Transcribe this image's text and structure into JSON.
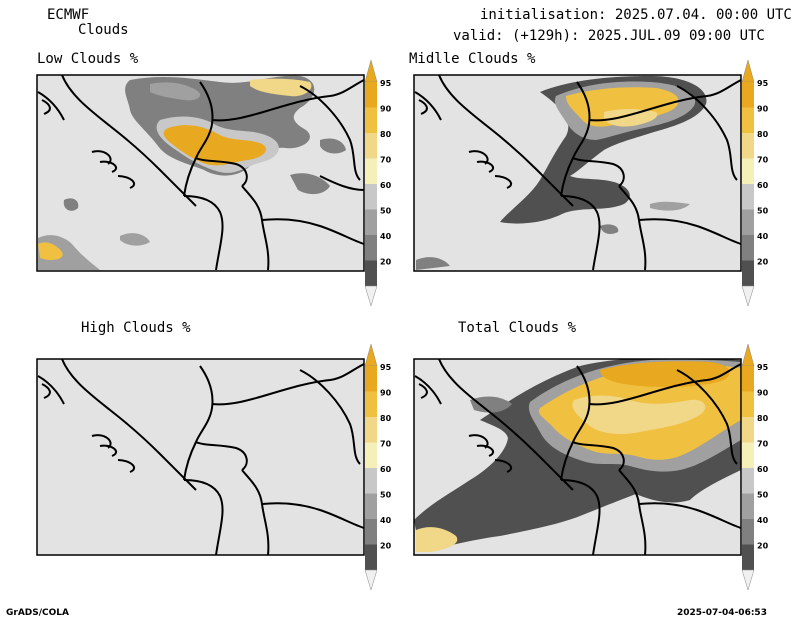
{
  "header": {
    "model": "ECMWF",
    "product": "Clouds",
    "initialisation": "initialisation: 2025.07.04. 00:00 UTC",
    "valid": "valid: (+129h): 2025.JUL.09 09:00 UTC"
  },
  "panels": [
    {
      "title": "Low Clouds %"
    },
    {
      "title": "Midlle Clouds %"
    },
    {
      "title": "High Clouds %"
    },
    {
      "title": "Total Clouds %"
    }
  ],
  "legend": {
    "levels": [
      "95",
      "90",
      "80",
      "70",
      "60",
      "50",
      "40",
      "20"
    ],
    "colors": {
      "95": "#e8a820",
      "90": "#f0c040",
      "80": "#f0d888",
      "70": "#f5f0b8",
      "60": "#c8c8c8",
      "50": "#a0a0a0",
      "40": "#808080",
      "20": "#505050",
      "top_arrow": "#e8a820",
      "bottom_arrow": "#f0f0f0"
    }
  },
  "footer": {
    "left": "GrADS/COLA",
    "right": "2025-07-04-06:53"
  },
  "colors": {
    "map_background": "#e3e3e3",
    "border": "#000000"
  }
}
